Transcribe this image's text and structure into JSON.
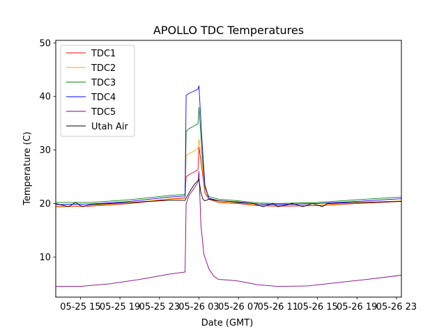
{
  "chart_data": {
    "type": "line",
    "title": "APOLLO TDC Temperatures",
    "xlabel": "Date (GMT)",
    "ylabel": "Temperature (C)",
    "xlim": [
      12.5,
      47.5
    ],
    "ylim": [
      2.5,
      50.5
    ],
    "x_ticks": [
      {
        "value": 15,
        "label": "05-25 15"
      },
      {
        "value": 19,
        "label": "05-25 19"
      },
      {
        "value": 23,
        "label": "05-25 23"
      },
      {
        "value": 27,
        "label": "05-26 03"
      },
      {
        "value": 31,
        "label": "05-26 07"
      },
      {
        "value": 35,
        "label": "05-26 11"
      },
      {
        "value": 39,
        "label": "05-26 15"
      },
      {
        "value": 43,
        "label": "05-26 19"
      },
      {
        "value": 47,
        "label": "05-26 23"
      }
    ],
    "y_ticks": [
      10,
      20,
      30,
      40,
      50
    ],
    "legend_position": "top-left",
    "x_units": "hours since 05-25 00:00 GMT",
    "series": [
      {
        "name": "TDC1",
        "color": "#ff0000",
        "x": [
          12.5,
          16,
          20,
          24,
          25.6,
          25.7,
          26,
          26.5,
          26.9,
          27.0,
          27.3,
          27.6,
          28,
          29,
          31,
          33,
          35,
          39,
          43,
          47.5
        ],
        "y": [
          19.4,
          19.5,
          20.0,
          20.8,
          21.0,
          25.0,
          25.4,
          25.9,
          26.3,
          30.5,
          26.5,
          22.0,
          20.8,
          20.2,
          20.0,
          19.6,
          19.5,
          19.6,
          20.0,
          20.4
        ]
      },
      {
        "name": "TDC2",
        "color": "#ffa500",
        "x": [
          12.5,
          16,
          20,
          24,
          25.6,
          25.7,
          26,
          26.5,
          26.9,
          27.0,
          27.3,
          27.6,
          28,
          29,
          31,
          33,
          35,
          39,
          43,
          47.5
        ],
        "y": [
          19.5,
          19.6,
          20.1,
          20.9,
          21.1,
          29.0,
          29.3,
          29.8,
          30.3,
          32.0,
          28.0,
          22.5,
          20.9,
          20.3,
          20.1,
          19.7,
          19.6,
          19.7,
          20.1,
          20.5
        ]
      },
      {
        "name": "TDC3",
        "color": "#008000",
        "x": [
          12.5,
          16,
          20,
          24,
          25.6,
          25.7,
          26,
          26.5,
          26.9,
          27.0,
          27.3,
          27.6,
          28,
          29,
          31,
          33,
          35,
          39,
          43,
          47.5
        ],
        "y": [
          20.2,
          20.2,
          20.7,
          21.5,
          21.7,
          33.5,
          34.0,
          34.5,
          34.9,
          38.0,
          30.0,
          23.0,
          21.3,
          20.8,
          20.5,
          20.1,
          20.0,
          20.2,
          20.7,
          21.2
        ]
      },
      {
        "name": "TDC4",
        "color": "#0000ff",
        "x": [
          12.5,
          16,
          20,
          24,
          25.6,
          25.7,
          26,
          26.5,
          26.9,
          27.0,
          27.3,
          27.6,
          28,
          29,
          31,
          33,
          35,
          39,
          43,
          47.5
        ],
        "y": [
          19.8,
          19.9,
          20.4,
          21.2,
          21.4,
          40.2,
          40.6,
          41.0,
          41.4,
          42.0,
          32.0,
          23.5,
          21.0,
          20.5,
          20.3,
          19.9,
          19.8,
          20.0,
          20.4,
          20.9
        ]
      },
      {
        "name": "TDC5",
        "color": "#800080",
        "x": [
          12.5,
          15,
          18,
          21,
          24,
          25.6,
          25.7,
          26,
          26.5,
          26.9,
          27.0,
          27.2,
          27.5,
          28,
          28.5,
          29,
          30,
          31,
          33,
          35,
          38,
          41,
          44,
          47.5
        ],
        "y": [
          4.5,
          4.5,
          5.0,
          5.8,
          6.8,
          7.2,
          20.0,
          21.5,
          22.8,
          24.0,
          26.0,
          16.0,
          10.5,
          7.8,
          6.4,
          5.8,
          5.7,
          5.5,
          4.8,
          4.5,
          4.6,
          5.2,
          5.8,
          6.6
        ]
      },
      {
        "name": "Utah Air",
        "color": "#000000",
        "x": [
          12.5,
          13.8,
          14.5,
          15.2,
          16,
          18,
          20,
          22,
          24,
          25.6,
          25.7,
          26,
          26.5,
          27.0,
          27.2,
          27.4,
          27.6,
          28,
          29,
          30,
          31,
          32.5,
          33.5,
          34.5,
          35,
          36.5,
          37.5,
          38.5,
          39.5,
          40,
          43,
          47.5
        ],
        "y": [
          20.0,
          19.4,
          20.2,
          19.4,
          19.8,
          20.0,
          20.2,
          20.4,
          20.6,
          20.6,
          21.0,
          22.0,
          23.5,
          24.5,
          22.0,
          20.8,
          20.5,
          20.8,
          20.5,
          20.4,
          20.2,
          20.0,
          19.4,
          20.0,
          19.4,
          20.0,
          19.4,
          20.0,
          19.4,
          20.0,
          20.2,
          20.4
        ]
      }
    ]
  }
}
